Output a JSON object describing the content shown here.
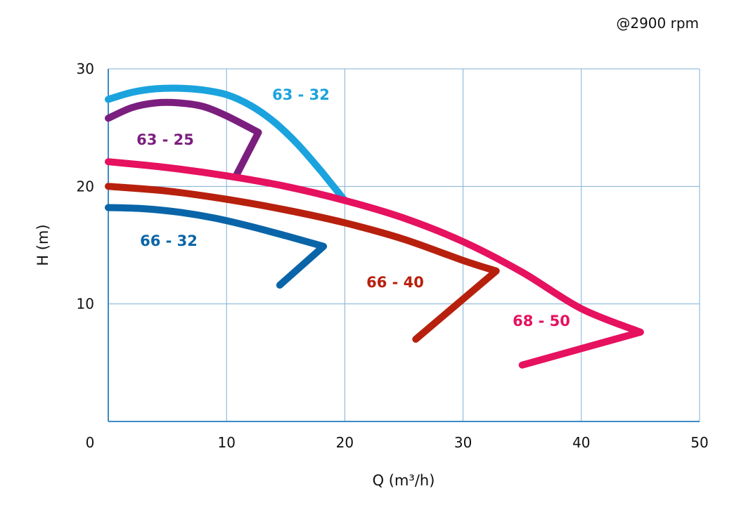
{
  "chart_data": {
    "type": "line",
    "note": "@2900 rpm",
    "xlabel": "Q (m³/h)",
    "ylabel": "H (m)",
    "xlim": [
      0,
      50
    ],
    "ylim": [
      0,
      30
    ],
    "x_ticks": [
      "0",
      "10",
      "20",
      "30",
      "40",
      "50"
    ],
    "y_ticks": [
      "10",
      "20",
      "30"
    ],
    "grid": true,
    "series": [
      {
        "name": "63 - 32",
        "color": "#1ba3de",
        "x": [
          0,
          2,
          4,
          6,
          8,
          10,
          12,
          14,
          16,
          18,
          20
        ],
        "y": [
          27.4,
          28.0,
          28.3,
          28.35,
          28.2,
          27.8,
          26.9,
          25.5,
          23.6,
          21.3,
          18.8
        ]
      },
      {
        "name": "63 - 25",
        "color": "#7b1f7e",
        "x": [
          0,
          2,
          4,
          6,
          8,
          10,
          12.7,
          10.8
        ],
        "y": [
          25.8,
          26.7,
          27.1,
          27.1,
          26.8,
          26.0,
          24.6,
          20.9
        ]
      },
      {
        "name": "68 - 50",
        "color": "#e6115f",
        "x": [
          0,
          5,
          10,
          15,
          20,
          25,
          30,
          35,
          40,
          45,
          35
        ],
        "y": [
          22.1,
          21.6,
          20.9,
          20.0,
          18.8,
          17.3,
          15.3,
          12.7,
          9.6,
          7.6,
          4.8
        ]
      },
      {
        "name": "66 - 40",
        "color": "#b8200e",
        "x": [
          0,
          5,
          10,
          15,
          20,
          25,
          30,
          32.8,
          26
        ],
        "y": [
          20.0,
          19.6,
          18.9,
          18.0,
          16.9,
          15.5,
          13.7,
          12.8,
          7.0
        ]
      },
      {
        "name": "66 - 32",
        "color": "#0a65a8",
        "x": [
          0,
          3,
          6,
          9,
          12,
          15,
          18.2,
          14.5
        ],
        "y": [
          18.2,
          18.1,
          17.8,
          17.3,
          16.6,
          15.8,
          14.9,
          11.6
        ]
      }
    ]
  }
}
